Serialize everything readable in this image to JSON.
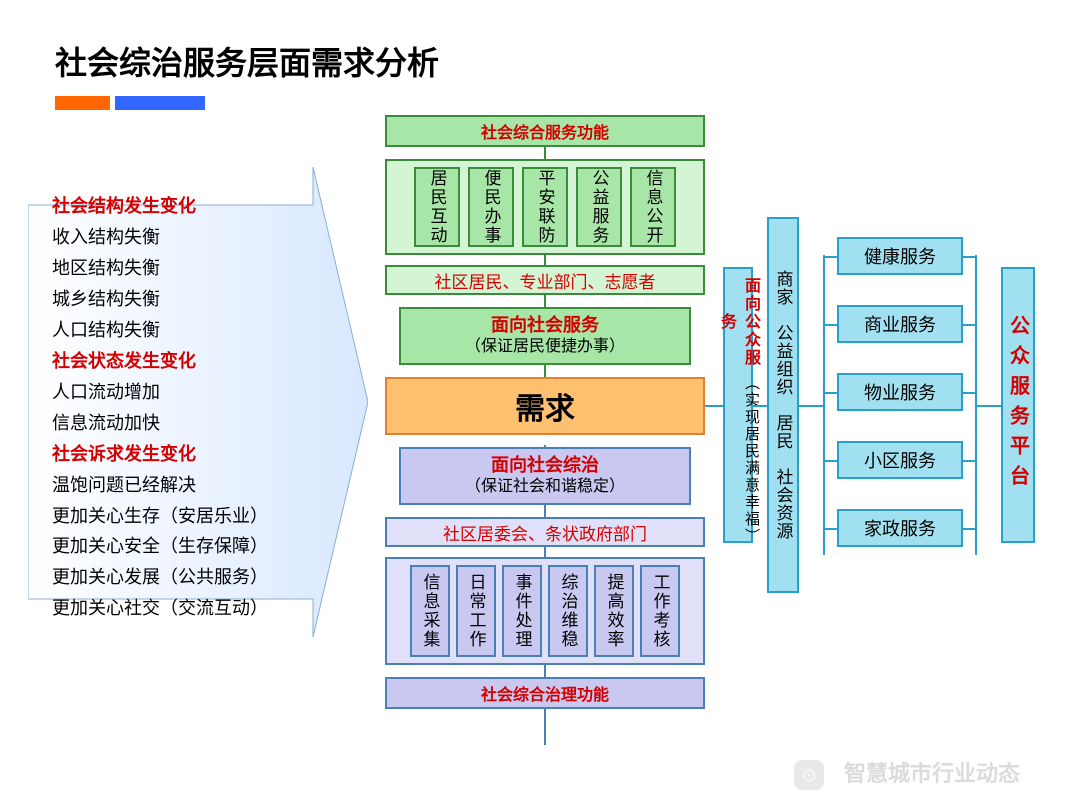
{
  "title": "社会综治服务层面需求分析",
  "colors": {
    "green_border": "#3a8b3a",
    "green_fill": "#a8e6a8",
    "green_light_fill": "#d4f5d4",
    "blue_border": "#4a7fb8",
    "purple_fill": "#c8c8f0",
    "purple_light_fill": "#e0e0f8",
    "orange_border": "#e08030",
    "orange_fill": "#ffc070",
    "cyan_border": "#2aa0c8",
    "cyan_fill": "#a0e0f0",
    "red_text": "#d40000"
  },
  "left_list": [
    {
      "t": "社会结构发生变化",
      "red": true
    },
    {
      "t": "收入结构失衡",
      "red": false
    },
    {
      "t": "地区结构失衡",
      "red": false
    },
    {
      "t": "城乡结构失衡",
      "red": false
    },
    {
      "t": "人口结构失衡",
      "red": false
    },
    {
      "t": "社会状态发生变化",
      "red": true
    },
    {
      "t": "人口流动增加",
      "red": false
    },
    {
      "t": "信息流动加快",
      "red": false
    },
    {
      "t": "社会诉求发生变化",
      "red": true
    },
    {
      "t": "温饱问题已经解决",
      "red": false
    },
    {
      "t": "更加关心生存（安居乐业）",
      "red": false
    },
    {
      "t": "更加关心安全（生存保障）",
      "red": false
    },
    {
      "t": "更加关心发展（公共服务）",
      "red": false
    },
    {
      "t": "更加关心社交（交流互动）",
      "red": false
    }
  ],
  "top_header": "社会综合服务功能",
  "top_items": [
    "居民互动",
    "便民办事",
    "平安联防",
    "公益服务",
    "信息公开"
  ],
  "top_actors": "社区居民、专业部门、志愿者",
  "service_title": "面向社会服务",
  "service_sub": "（保证居民便捷办事）",
  "center": "需求",
  "gov_title": "面向社会综治",
  "gov_sub": "（保证社会和谐稳定）",
  "bottom_actors": "社区居委会、条状政府部门",
  "bottom_items": [
    "信息采集",
    "日常工作",
    "事件处理",
    "综治维稳",
    "提高效率",
    "工作考核"
  ],
  "bottom_header": "社会综合治理功能",
  "public_service_title": "面向公众服务",
  "public_service_sub": "（实现居民满意幸福）",
  "merchants": "商家　公益组织　居民　社会资源",
  "right_items": [
    "健康服务",
    "商业服务",
    "物业服务",
    "小区服务",
    "家政服务"
  ],
  "platform": "公众服务平台",
  "watermark": "智慧城市行业动态"
}
